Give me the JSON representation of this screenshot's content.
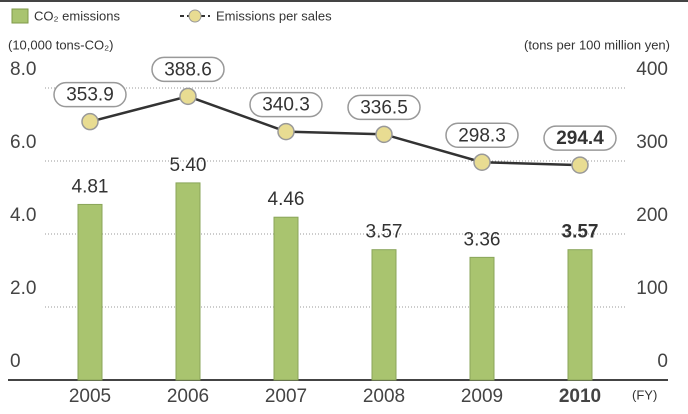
{
  "chart_data": {
    "type": "bar-line",
    "categories": [
      "2005",
      "2006",
      "2007",
      "2008",
      "2009",
      "2010"
    ],
    "x_label": "(FY)",
    "y_label": "(10,000 tons-CO₂)",
    "y2_label": "(tons per 100 million yen)",
    "series": [
      {
        "name": "CO₂ emissions",
        "type": "bar",
        "color": "#a9c46f",
        "values": [
          4.81,
          5.4,
          4.46,
          3.57,
          3.36,
          3.57
        ],
        "value_labels": [
          "4.81",
          "5.40",
          "4.46",
          "3.57",
          "3.36",
          "3.57"
        ]
      },
      {
        "name": "Emissions per sales",
        "type": "line",
        "axis": "y2",
        "color": "#333333",
        "marker_color": "#e8dc92",
        "values": [
          353.9,
          388.6,
          340.3,
          336.5,
          298.3,
          294.4
        ]
      }
    ],
    "ylim": [
      0,
      8
    ],
    "yticks": [
      0,
      {
        "value": 2,
        "label": "2.0"
      },
      {
        "value": 4,
        "label": "4.0"
      },
      {
        "value": 6,
        "label": "6.0"
      },
      {
        "value": 8,
        "label": "8.0"
      }
    ],
    "y2lim": [
      0,
      400
    ],
    "y2ticks": [
      0,
      100,
      200,
      300,
      400
    ],
    "grid": true
  }
}
